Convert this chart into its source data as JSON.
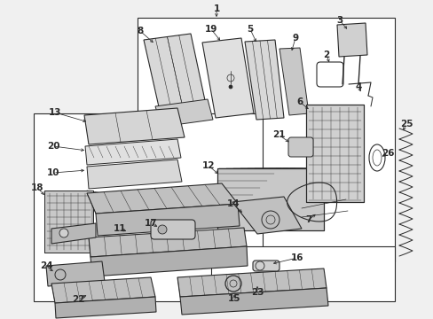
{
  "bg_color": "#f0f0f0",
  "line_color": "#2a2a2a",
  "fig_width": 4.89,
  "fig_height": 3.6,
  "dpi": 100
}
